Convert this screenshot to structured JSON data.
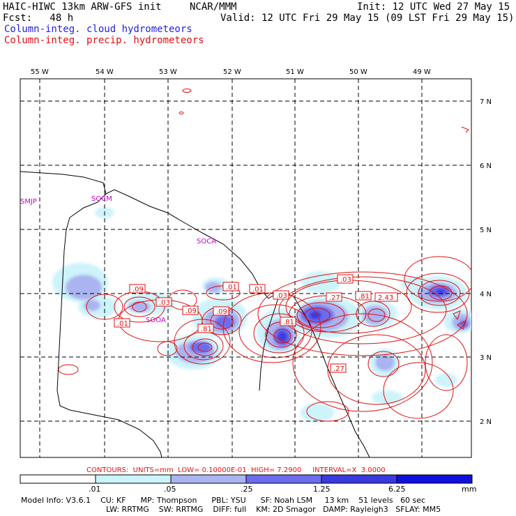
{
  "header": {
    "model_title": "HAIC-HIWC 13km ARW-GFS init",
    "org": "NCAR/MMM",
    "init": "Init: 12 UTC Wed 27 May 15",
    "fcst": "Fcst:   48 h",
    "valid": "Valid: 12 UTC Fri 29 May 15 (09 LST Fri 29 May 15)",
    "field_cloud": "Column-integ. cloud hydrometeors",
    "field_precip": "Column-integ. precip. hydrometeors"
  },
  "colors": {
    "cloud_text": "#2222dd",
    "precip_text": "#dd1111",
    "station_text": "#cc00cc",
    "shade_1": "#cdf3fb",
    "shade_2": "#aab4f0",
    "shade_3": "#6c6cee",
    "shade_4": "#3a3ae0",
    "shade_5": "#1010dd"
  },
  "map": {
    "lon_labels": [
      "55 W",
      "54 W",
      "53 W",
      "52 W",
      "51 W",
      "50 W",
      "49 W"
    ],
    "lat_labels": [
      "7 N",
      "6 N",
      "5 N",
      "4 N",
      "3 N",
      "2 N"
    ],
    "stations": [
      "SMJP",
      "SOCM",
      "SOCA",
      "SOOA"
    ],
    "contour_labels": [
      ".09",
      ".03",
      ".01",
      ".09",
      ".09",
      ".81",
      ".01",
      ".01",
      ".03",
      ".81",
      ".27",
      ".81",
      "2.43",
      ".03",
      ".27"
    ]
  },
  "contours_info": {
    "label": "CONTOURS:",
    "units": "UNITS=mm",
    "low": "LOW= 0.10000E-01",
    "high": "HIGH=  7.2900",
    "interval": "INTERVAL=X  3.0000"
  },
  "colorbar": {
    "labels": [
      ".01",
      ".05",
      ".25",
      "1.25",
      "6.25"
    ],
    "units": "mm"
  },
  "model_info": {
    "line1": [
      "Model Info: V3.6.1",
      "CU: KF",
      "MP: Thompson",
      "PBL: YSU",
      "SF: Noah LSM",
      "13 km",
      "51 levels",
      "60 sec"
    ],
    "line2": [
      "LW: RRTMG",
      "SW: RRTMG",
      "DIFF: full",
      "KM: 2D Smagor",
      "DAMP: Rayleigh3",
      "SFLAY: MM5"
    ]
  }
}
